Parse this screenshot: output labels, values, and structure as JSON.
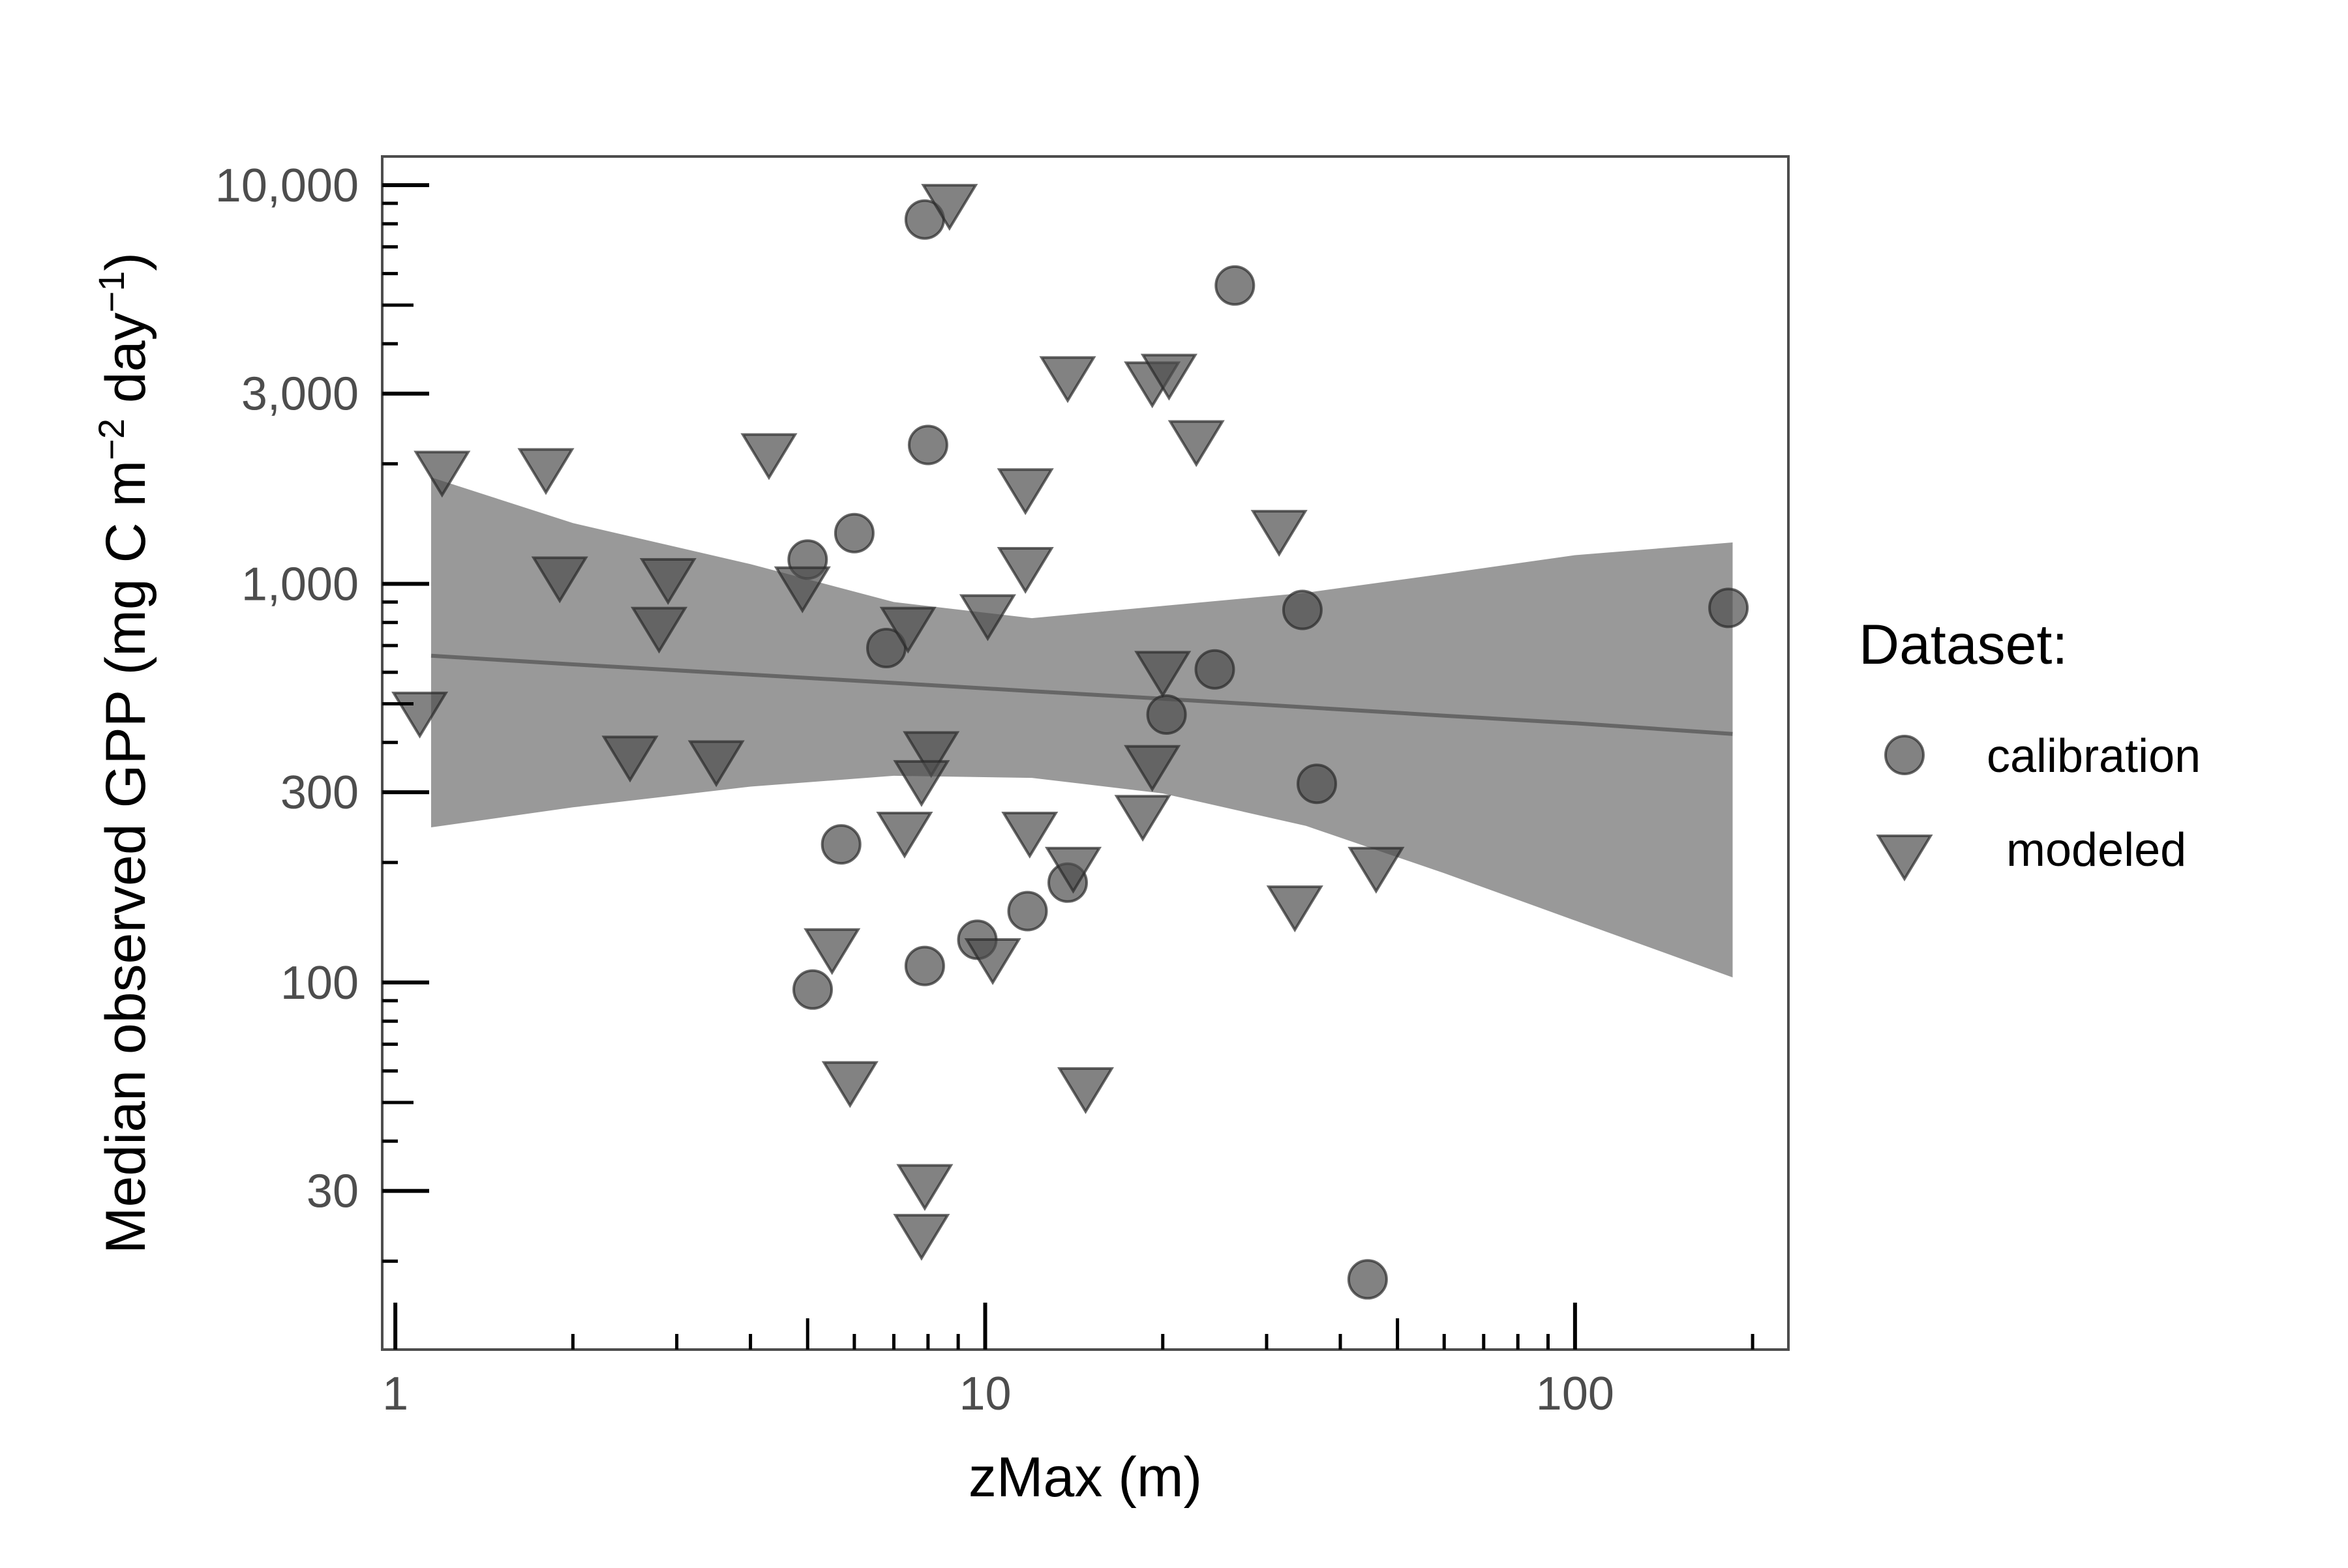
{
  "chart_data": {
    "type": "scatter",
    "xlabel": "zMax (m)",
    "ylabel": "Median observed GPP (mg C m",
    "ylabel_sup1": "−2",
    "ylabel_mid": " day",
    "ylabel_sup2": "−1",
    "ylabel_end": ")",
    "x_scale": "log",
    "y_scale": "log",
    "xlim": [
      0.95,
      230
    ],
    "ylim": [
      12,
      11800
    ],
    "x_ticks": [
      1,
      10,
      100
    ],
    "x_tick_labels": [
      "1",
      "10",
      "100"
    ],
    "y_ticks": [
      30,
      100,
      300,
      1000,
      3000,
      10000
    ],
    "y_tick_labels": [
      "30",
      "100",
      "300",
      "1,000",
      "3,000",
      "10,000"
    ],
    "grid": false,
    "legend": {
      "title": "Dataset:",
      "placement": "right",
      "entries": [
        {
          "label": "calibration",
          "marker": "circle"
        },
        {
          "label": "modeled",
          "marker": "triangle-down"
        }
      ]
    },
    "marker_color": "#4d4d4d",
    "marker_opacity": 0.7,
    "trend_color": "#666666",
    "band_color": "#999999",
    "trend": {
      "x": [
        1.15,
        2,
        4,
        7,
        12,
        20,
        35,
        60,
        100,
        185
      ],
      "y": [
        660,
        628,
        592,
        564,
        538,
        515,
        490,
        467,
        447,
        420
      ],
      "lower": [
        245,
        275,
        310,
        330,
        326,
        298,
        247,
        188,
        143,
        103
      ],
      "upper": [
        1850,
        1420,
        1120,
        900,
        820,
        880,
        950,
        1060,
        1180,
        1270
      ]
    },
    "series": [
      {
        "name": "calibration",
        "marker": "circle",
        "x": [
          7.9,
          26.5,
          8.0,
          6.0,
          5.0,
          34.5,
          182,
          6.8,
          24.5,
          20.3,
          36.5,
          5.7,
          13.8,
          11.8,
          9.7,
          7.9,
          5.1,
          44.5
        ],
        "y": [
          8200,
          5600,
          2230,
          1340,
          1150,
          860,
          870,
          690,
          610,
          470,
          315,
          222,
          178,
          151,
          128,
          110,
          96,
          18
        ]
      },
      {
        "name": "modeled",
        "marker": "triangle-down",
        "x": [
          8.7,
          13.8,
          19.2,
          20.5,
          22.8,
          1.2,
          1.8,
          4.3,
          11.7,
          31.5,
          1.9,
          2.9,
          11.7,
          4.9,
          10.1,
          7.4,
          2.8,
          20.0,
          1.1,
          2.5,
          3.5,
          8.1,
          19.2,
          7.8,
          18.5,
          7.3,
          11.9,
          14.1,
          46.0,
          33.5,
          5.5,
          10.3,
          5.9,
          14.8,
          7.9,
          7.8
        ],
        "y": [
          9200,
          3400,
          3300,
          3450,
          2350,
          1970,
          2000,
          2180,
          1780,
          1400,
          1070,
          1060,
          1130,
          1010,
          860,
          800,
          800,
          620,
          490,
          380,
          370,
          390,
          360,
          330,
          270,
          245,
          245,
          200,
          200,
          160,
          125,
          118,
          58,
          56,
          32,
          24
        ]
      }
    ]
  }
}
